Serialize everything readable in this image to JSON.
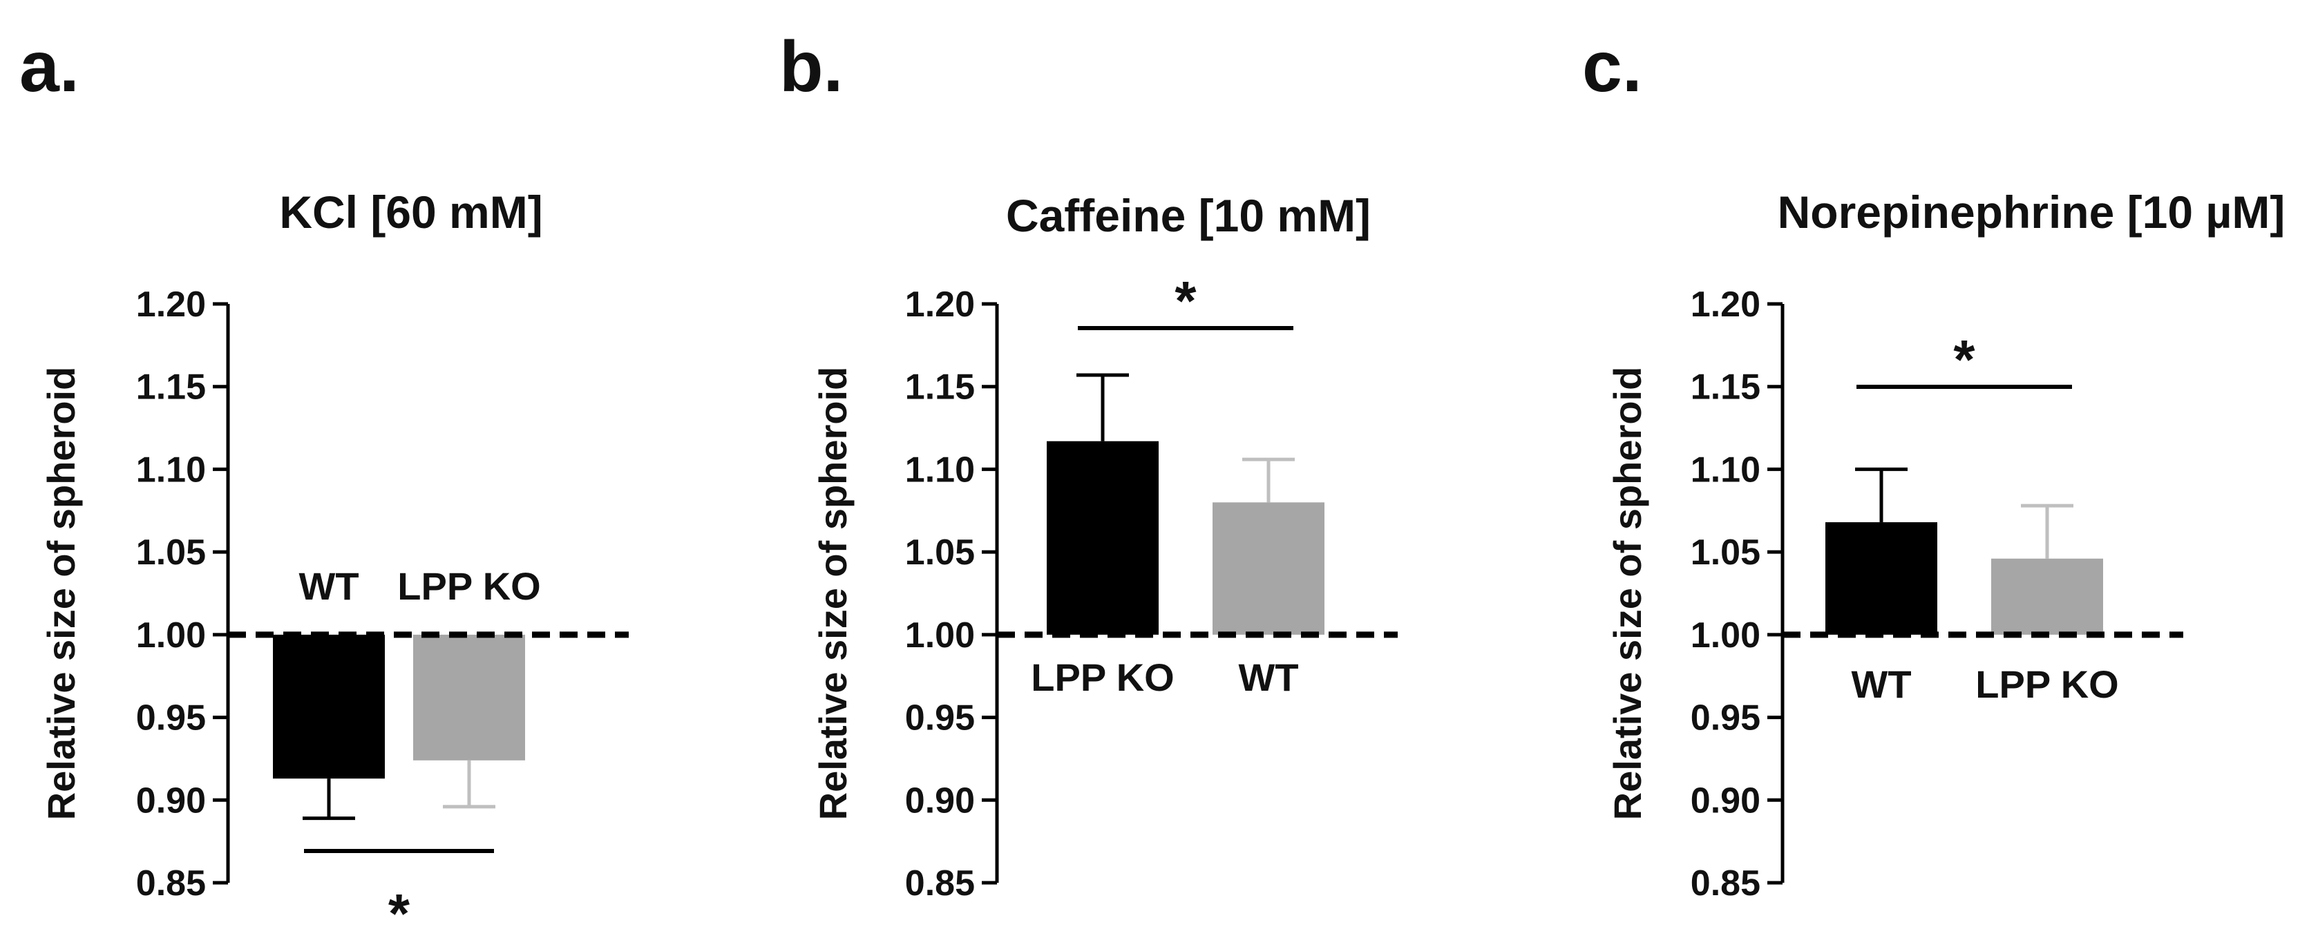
{
  "figure_colors": {
    "black": "#000000",
    "gray": "#a6a6a6",
    "gray_error": "#bfbfbf",
    "text": "#111111"
  },
  "chart_data": [
    {
      "type": "bar",
      "panel": "a.",
      "title": "KCl [60 mM]",
      "xlabel": "",
      "ylabel": "Relative size of spheroid",
      "ylim": [
        0.85,
        1.2
      ],
      "yticks": [
        "0.85",
        "0.90",
        "0.95",
        "1.00",
        "1.05",
        "1.10",
        "1.15",
        "1.20"
      ],
      "baseline": 1.0,
      "categories": [
        "WT",
        "LPP KO"
      ],
      "values": [
        0.913,
        0.924
      ],
      "errors": [
        0.024,
        0.028
      ],
      "colors": [
        "#000000",
        "#a6a6a6"
      ],
      "significance": {
        "label": "*",
        "position": "below"
      }
    },
    {
      "type": "bar",
      "panel": "b.",
      "title": "Caffeine [10 mM]",
      "xlabel": "",
      "ylabel": "Relative size of spheroid",
      "ylim": [
        0.85,
        1.2
      ],
      "yticks": [
        "0.85",
        "0.90",
        "0.95",
        "1.00",
        "1.05",
        "1.10",
        "1.15",
        "1.20"
      ],
      "baseline": 1.0,
      "categories": [
        "LPP KO",
        "WT"
      ],
      "values": [
        1.117,
        1.08
      ],
      "errors": [
        0.04,
        0.026
      ],
      "colors": [
        "#000000",
        "#a6a6a6"
      ],
      "significance": {
        "label": "*",
        "position": "above"
      }
    },
    {
      "type": "bar",
      "panel": "c.",
      "title": "Norepinephrine [10 µM]",
      "xlabel": "",
      "ylabel": "Relative size of spheroid",
      "ylim": [
        0.85,
        1.2
      ],
      "yticks": [
        "0.85",
        "0.90",
        "0.95",
        "1.00",
        "1.05",
        "1.10",
        "1.15",
        "1.20"
      ],
      "baseline": 1.0,
      "categories": [
        "WT",
        "LPP KO"
      ],
      "values": [
        1.068,
        1.046
      ],
      "errors": [
        0.032,
        0.032
      ],
      "colors": [
        "#000000",
        "#a6a6a6"
      ],
      "significance": {
        "label": "*",
        "position": "above"
      }
    }
  ]
}
